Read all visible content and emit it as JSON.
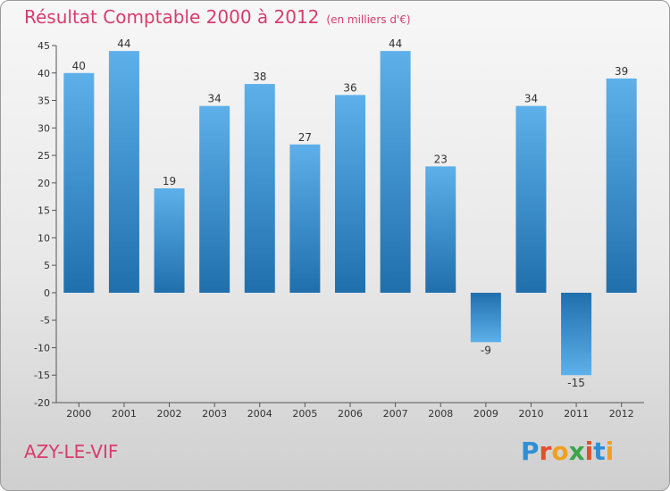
{
  "header": {
    "title": "Résultat Comptable 2000 à 2012",
    "subtitle": "(en milliers d'€)"
  },
  "footer": {
    "place": "AZY-LE-VIF",
    "logo_text": "Proxiti"
  },
  "colors": {
    "title": "#d83c6e",
    "bar_light": "#5db0ea",
    "bar_dark": "#1f6fad"
  },
  "chart_data": {
    "type": "bar",
    "title": "Résultat Comptable 2000 à 2012",
    "xlabel": "",
    "ylabel": "",
    "categories": [
      "2000",
      "2001",
      "2002",
      "2003",
      "2004",
      "2005",
      "2006",
      "2007",
      "2008",
      "2009",
      "2010",
      "2011",
      "2012"
    ],
    "values": [
      40,
      44,
      19,
      34,
      38,
      27,
      36,
      44,
      23,
      -9,
      34,
      -15,
      39
    ],
    "ylim": [
      -20,
      45
    ],
    "yticks": [
      45,
      40,
      35,
      30,
      25,
      20,
      15,
      10,
      5,
      0,
      -5,
      -10,
      -15,
      -20
    ],
    "grid": false,
    "legend": "none"
  }
}
